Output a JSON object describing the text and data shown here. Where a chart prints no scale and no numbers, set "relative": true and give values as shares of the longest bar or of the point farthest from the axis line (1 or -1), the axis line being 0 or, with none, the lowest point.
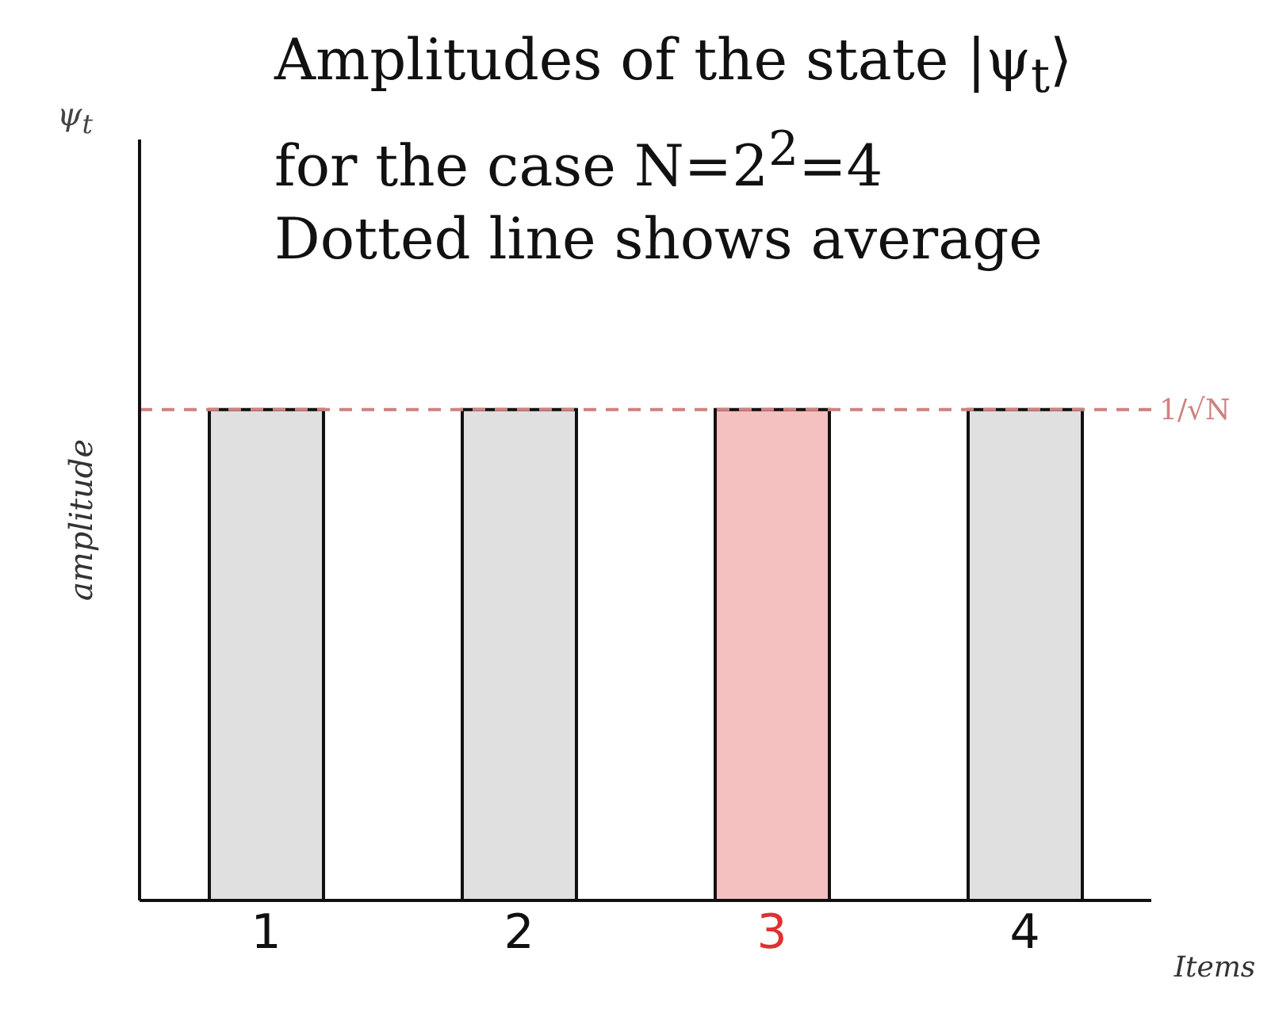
{
  "chart_data": {
    "type": "bar",
    "title": "Amplitudes of the state |ψ$_{t}$⟩",
    "subtitle": "for the case N=2$^{2}$=4",
    "annotations": [
      "Dotted line shows average",
      "ψ$_{t}$"
    ],
    "xlabel": "Items",
    "ylabel": "amplitude",
    "relative": true,
    "categories": [
      "1",
      "2",
      "3",
      "4"
    ],
    "values": [
      1,
      1,
      1,
      1
    ],
    "colors": [
      "#e0e0e0",
      "#e0e0e0",
      "#f5c0c0",
      "#e0e0e0"
    ],
    "ref_lines": [
      {
        "axis": "y",
        "value": 1,
        "label": "1/√N",
        "color": "#d08080",
        "line_style": "dashed"
      }
    ]
  }
}
